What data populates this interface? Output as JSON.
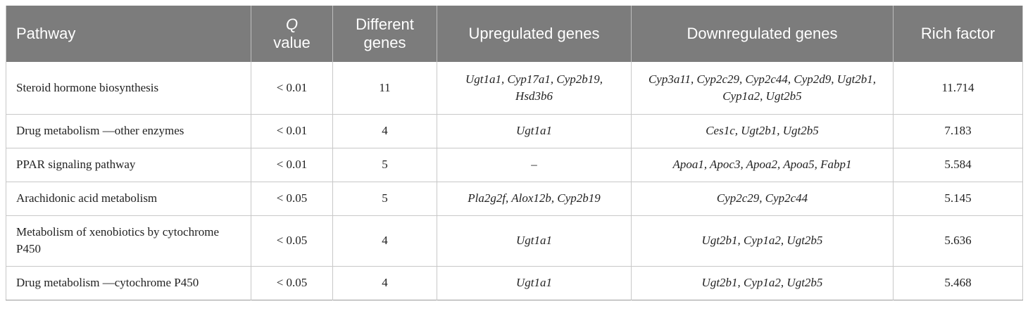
{
  "header": {
    "pathway": "Pathway",
    "q_italic": "Q",
    "q_rest": "value",
    "different": "Different genes",
    "up": "Upregulated genes",
    "down": "Downregulated genes",
    "rich": "Rich factor"
  },
  "rows": [
    {
      "pathway": "Steroid hormone biosynthesis",
      "q": "< 0.01",
      "different": "11",
      "up": "Ugt1a1, Cyp17a1, Cyp2b19, Hsd3b6",
      "down": "Cyp3a11, Cyp2c29, Cyp2c44, Cyp2d9, Ugt2b1, Cyp1a2, Ugt2b5",
      "rich": "11.714"
    },
    {
      "pathway": "Drug metabolism —other enzymes",
      "q": "< 0.01",
      "different": "4",
      "up": "Ugt1a1",
      "down": "Ces1c, Ugt2b1, Ugt2b5",
      "rich": "7.183"
    },
    {
      "pathway": "PPAR signaling pathway",
      "q": "< 0.01",
      "different": "5",
      "up": "–",
      "down": "Apoa1, Apoc3, Apoa2, Apoa5, Fabp1",
      "rich": "5.584"
    },
    {
      "pathway": "Arachidonic acid metabolism",
      "q": "< 0.05",
      "different": "5",
      "up": "Pla2g2f, Alox12b, Cyp2b19",
      "down": "Cyp2c29, Cyp2c44",
      "rich": "5.145"
    },
    {
      "pathway": "Metabolism of xenobiotics by cytochrome P450",
      "q": "< 0.05",
      "different": "4",
      "up": "Ugt1a1",
      "down": "Ugt2b1, Cyp1a2, Ugt2b5",
      "rich": "5.636"
    },
    {
      "pathway": "Drug metabolism —cytochrome P450",
      "q": "< 0.05",
      "different": "4",
      "up": "Ugt1a1",
      "down": "Ugt2b1, Cyp1a2, Ugt2b5",
      "rich": "5.468"
    }
  ]
}
